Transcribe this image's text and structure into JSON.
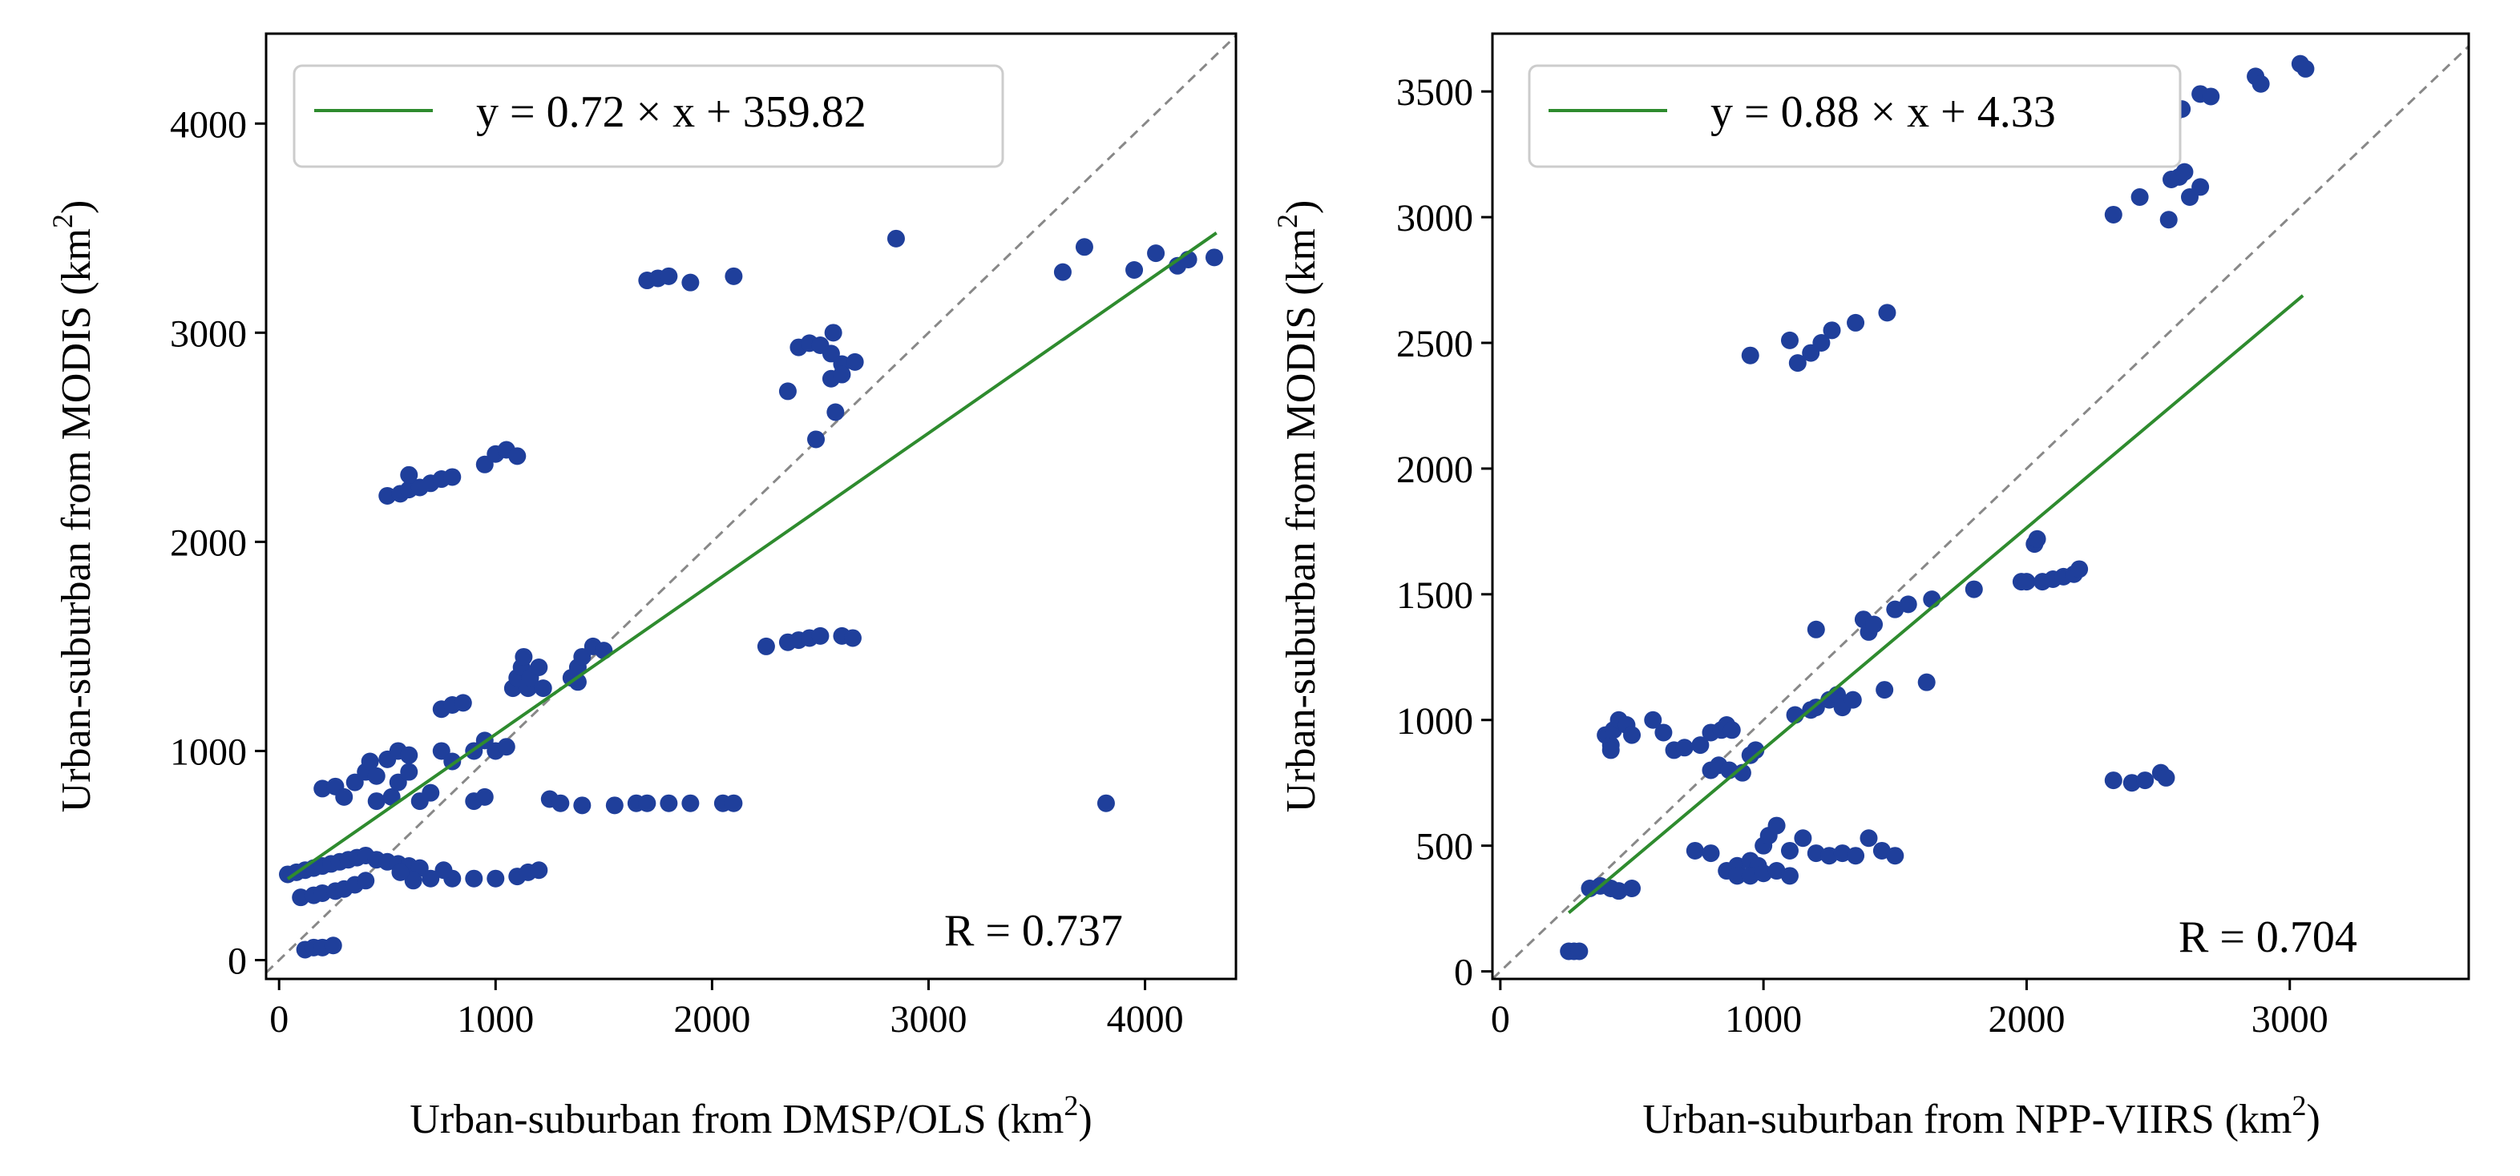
{
  "chart_data": [
    {
      "type": "scatter",
      "xlabel": "Urban-suburban from DMSP/OLS",
      "xlabel_unit_base": "(km",
      "xlabel_unit_exp": "2",
      "xlabel_unit_close": ")",
      "ylabel": "Urban-suburban from MODIS",
      "ylabel_unit_base": "(km",
      "ylabel_unit_exp": "2",
      "ylabel_unit_close": ")",
      "xlim": [
        -60,
        4420
      ],
      "ylim": [
        -90,
        4430
      ],
      "xticks": [
        0,
        1000,
        2000,
        3000,
        4000
      ],
      "yticks": [
        0,
        1000,
        2000,
        3000,
        4000
      ],
      "identity_line": [
        [
          -60,
          -60
        ],
        [
          4420,
          4420
        ]
      ],
      "fit": {
        "label": "y = 0.72 × x + 359.82",
        "slope": 0.72,
        "intercept": 359.82,
        "x_range": [
          40,
          4330
        ]
      },
      "r_text": "R = 0.737",
      "legend_position": "top-left",
      "colors": {
        "points": "#1f3f9b",
        "fit": "#2e8b2e",
        "identity": "#888888"
      },
      "points": [
        [
          40,
          410
        ],
        [
          80,
          420
        ],
        [
          120,
          430
        ],
        [
          160,
          440
        ],
        [
          200,
          450
        ],
        [
          240,
          460
        ],
        [
          280,
          470
        ],
        [
          320,
          480
        ],
        [
          360,
          490
        ],
        [
          400,
          500
        ],
        [
          450,
          480
        ],
        [
          500,
          470
        ],
        [
          550,
          460
        ],
        [
          600,
          450
        ],
        [
          650,
          440
        ],
        [
          100,
          300
        ],
        [
          160,
          310
        ],
        [
          200,
          320
        ],
        [
          260,
          330
        ],
        [
          300,
          340
        ],
        [
          350,
          360
        ],
        [
          400,
          380
        ],
        [
          120,
          50
        ],
        [
          160,
          60
        ],
        [
          200,
          60
        ],
        [
          250,
          70
        ],
        [
          620,
          380
        ],
        [
          700,
          390
        ],
        [
          800,
          390
        ],
        [
          900,
          390
        ],
        [
          1000,
          390
        ],
        [
          1100,
          400
        ],
        [
          1150,
          420
        ],
        [
          1200,
          430
        ],
        [
          560,
          420
        ],
        [
          760,
          430
        ],
        [
          200,
          820
        ],
        [
          260,
          830
        ],
        [
          300,
          780
        ],
        [
          350,
          850
        ],
        [
          400,
          900
        ],
        [
          420,
          950
        ],
        [
          450,
          880
        ],
        [
          500,
          960
        ],
        [
          550,
          1000
        ],
        [
          600,
          980
        ],
        [
          450,
          760
        ],
        [
          520,
          780
        ],
        [
          550,
          850
        ],
        [
          600,
          900
        ],
        [
          650,
          760
        ],
        [
          700,
          800
        ],
        [
          750,
          1000
        ],
        [
          800,
          950
        ],
        [
          900,
          1000
        ],
        [
          950,
          1050
        ],
        [
          1000,
          1000
        ],
        [
          1050,
          1020
        ],
        [
          900,
          760
        ],
        [
          950,
          780
        ],
        [
          750,
          1200
        ],
        [
          800,
          1220
        ],
        [
          850,
          1230
        ],
        [
          1080,
          1300
        ],
        [
          1100,
          1350
        ],
        [
          1120,
          1400
        ],
        [
          1130,
          1450
        ],
        [
          1150,
          1300
        ],
        [
          1160,
          1350
        ],
        [
          1200,
          1400
        ],
        [
          1220,
          1300
        ],
        [
          1350,
          1350
        ],
        [
          1380,
          1400
        ],
        [
          1400,
          1450
        ],
        [
          1450,
          1500
        ],
        [
          1500,
          1480
        ],
        [
          1380,
          1330
        ],
        [
          1250,
          770
        ],
        [
          1300,
          750
        ],
        [
          1400,
          740
        ],
        [
          1550,
          740
        ],
        [
          1650,
          750
        ],
        [
          1700,
          750
        ],
        [
          1800,
          750
        ],
        [
          1900,
          750
        ],
        [
          2050,
          750
        ],
        [
          2100,
          750
        ],
        [
          2250,
          1500
        ],
        [
          2350,
          1520
        ],
        [
          2400,
          1530
        ],
        [
          2450,
          1540
        ],
        [
          2500,
          1550
        ],
        [
          2600,
          1550
        ],
        [
          2650,
          1540
        ],
        [
          500,
          2220
        ],
        [
          560,
          2230
        ],
        [
          600,
          2250
        ],
        [
          650,
          2260
        ],
        [
          700,
          2280
        ],
        [
          750,
          2300
        ],
        [
          600,
          2320
        ],
        [
          800,
          2310
        ],
        [
          950,
          2370
        ],
        [
          1000,
          2420
        ],
        [
          1050,
          2440
        ],
        [
          1100,
          2410
        ],
        [
          1700,
          3250
        ],
        [
          1750,
          3260
        ],
        [
          1800,
          3270
        ],
        [
          1900,
          3240
        ],
        [
          2100,
          3270
        ],
        [
          2350,
          2720
        ],
        [
          2400,
          2930
        ],
        [
          2450,
          2950
        ],
        [
          2500,
          2940
        ],
        [
          2550,
          2900
        ],
        [
          2560,
          3000
        ],
        [
          2600,
          2850
        ],
        [
          2550,
          2780
        ],
        [
          2600,
          2800
        ],
        [
          2660,
          2860
        ],
        [
          2480,
          2490
        ],
        [
          2570,
          2620
        ],
        [
          2850,
          3450
        ],
        [
          3620,
          3290
        ],
        [
          3720,
          3410
        ],
        [
          3950,
          3300
        ],
        [
          4050,
          3380
        ],
        [
          4150,
          3320
        ],
        [
          4200,
          3350
        ],
        [
          4320,
          3360
        ],
        [
          3820,
          750
        ]
      ]
    },
    {
      "type": "scatter",
      "xlabel": "Urban-suburban from NPP-VIIRS",
      "xlabel_unit_base": "(km",
      "xlabel_unit_exp": "2",
      "xlabel_unit_close": ")",
      "ylabel": "Urban-suburban from MODIS",
      "ylabel_unit_base": "(km",
      "ylabel_unit_exp": "2",
      "ylabel_unit_close": ")",
      "xlim": [
        -30,
        3680
      ],
      "ylim": [
        -30,
        3730
      ],
      "xticks": [
        0,
        1000,
        2000,
        3000
      ],
      "yticks": [
        0,
        500,
        1000,
        1500,
        2000,
        2500,
        3000,
        3500
      ],
      "identity_line": [
        [
          -30,
          -30
        ],
        [
          3680,
          3680
        ]
      ],
      "fit": {
        "label": "y = 0.88 × x + 4.33",
        "slope": 0.88,
        "intercept": 4.33,
        "x_range": [
          260,
          3050
        ]
      },
      "r_text": "R = 0.704",
      "legend_position": "top-left",
      "colors": {
        "points": "#1f3f9b",
        "fit": "#2e8b2e",
        "identity": "#888888"
      },
      "points": [
        [
          260,
          80
        ],
        [
          280,
          80
        ],
        [
          300,
          80
        ],
        [
          340,
          330
        ],
        [
          380,
          340
        ],
        [
          420,
          330
        ],
        [
          450,
          320
        ],
        [
          500,
          330
        ],
        [
          400,
          940
        ],
        [
          420,
          900
        ],
        [
          430,
          960
        ],
        [
          450,
          1000
        ],
        [
          480,
          980
        ],
        [
          500,
          940
        ],
        [
          420,
          880
        ],
        [
          580,
          1000
        ],
        [
          620,
          950
        ],
        [
          660,
          880
        ],
        [
          700,
          890
        ],
        [
          760,
          900
        ],
        [
          800,
          950
        ],
        [
          840,
          960
        ],
        [
          860,
          980
        ],
        [
          880,
          960
        ],
        [
          800,
          800
        ],
        [
          830,
          820
        ],
        [
          870,
          800
        ],
        [
          920,
          790
        ],
        [
          950,
          860
        ],
        [
          970,
          880
        ],
        [
          740,
          480
        ],
        [
          800,
          470
        ],
        [
          860,
          400
        ],
        [
          900,
          420
        ],
        [
          950,
          440
        ],
        [
          980,
          420
        ],
        [
          1000,
          500
        ],
        [
          1020,
          540
        ],
        [
          1050,
          580
        ],
        [
          1100,
          480
        ],
        [
          1150,
          530
        ],
        [
          1200,
          470
        ],
        [
          1250,
          460
        ],
        [
          1300,
          470
        ],
        [
          1350,
          460
        ],
        [
          1400,
          530
        ],
        [
          1450,
          480
        ],
        [
          1500,
          460
        ],
        [
          900,
          380
        ],
        [
          950,
          380
        ],
        [
          1000,
          390
        ],
        [
          1050,
          400
        ],
        [
          1100,
          380
        ],
        [
          1120,
          1020
        ],
        [
          1180,
          1040
        ],
        [
          1200,
          1050
        ],
        [
          1250,
          1080
        ],
        [
          1280,
          1100
        ],
        [
          1300,
          1050
        ],
        [
          1340,
          1080
        ],
        [
          1380,
          1400
        ],
        [
          1400,
          1350
        ],
        [
          1420,
          1380
        ],
        [
          1460,
          1120
        ],
        [
          1500,
          1440
        ],
        [
          1550,
          1460
        ],
        [
          1620,
          1150
        ],
        [
          1640,
          1480
        ],
        [
          1200,
          1360
        ],
        [
          1800,
          1520
        ],
        [
          1980,
          1550
        ],
        [
          2000,
          1550
        ],
        [
          2030,
          1700
        ],
        [
          2040,
          1720
        ],
        [
          2060,
          1550
        ],
        [
          2100,
          1560
        ],
        [
          2140,
          1570
        ],
        [
          2180,
          1580
        ],
        [
          2200,
          1600
        ],
        [
          2330,
          760
        ],
        [
          2400,
          750
        ],
        [
          2450,
          760
        ],
        [
          2510,
          790
        ],
        [
          2530,
          770
        ],
        [
          950,
          2450
        ],
        [
          1100,
          2510
        ],
        [
          1130,
          2420
        ],
        [
          1180,
          2460
        ],
        [
          1220,
          2500
        ],
        [
          1260,
          2550
        ],
        [
          1350,
          2580
        ],
        [
          1470,
          2620
        ],
        [
          2330,
          3010
        ],
        [
          2430,
          3080
        ],
        [
          2540,
          2990
        ],
        [
          2550,
          3150
        ],
        [
          2580,
          3160
        ],
        [
          2600,
          3180
        ],
        [
          2620,
          3080
        ],
        [
          2660,
          3120
        ],
        [
          2560,
          3410
        ],
        [
          2590,
          3430
        ],
        [
          2660,
          3490
        ],
        [
          2700,
          3480
        ],
        [
          2870,
          3560
        ],
        [
          2890,
          3530
        ],
        [
          3040,
          3610
        ],
        [
          3060,
          3590
        ]
      ]
    }
  ]
}
